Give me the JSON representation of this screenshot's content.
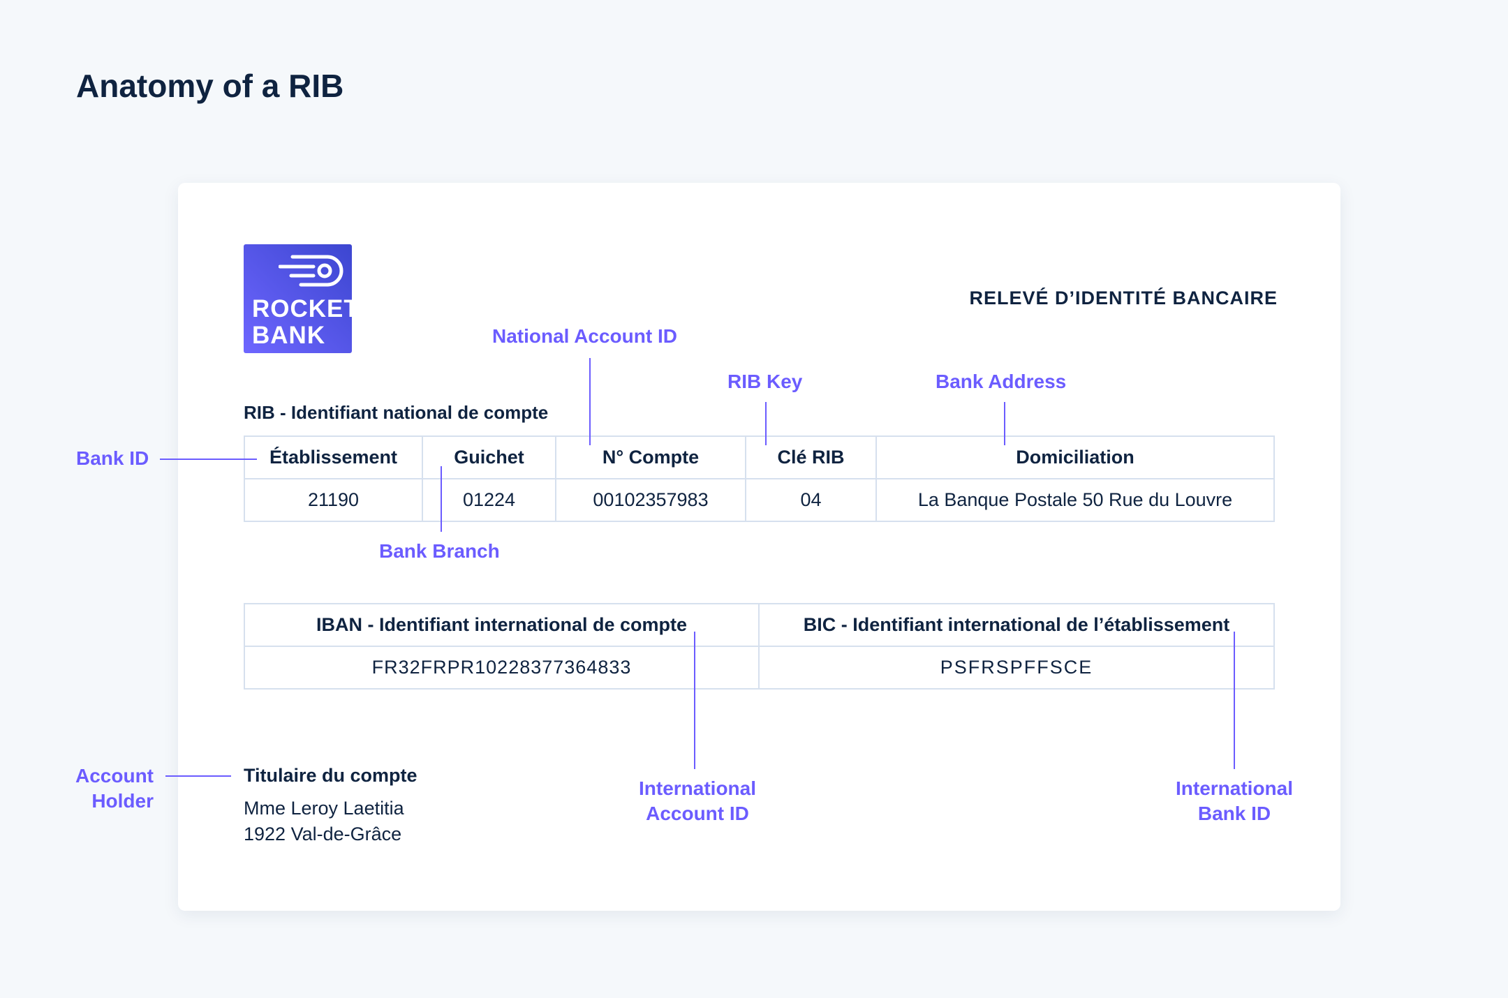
{
  "title": "Anatomy of a RIB",
  "logo": {
    "line1": "ROCKET",
    "line2": "BANK",
    "colors": [
      "#6e66ff",
      "#3c46d0"
    ]
  },
  "doc_title": "RELEVÉ D’IDENTITÉ BANCAIRE",
  "rib": {
    "label": "RIB - Identifiant national de compte",
    "headers": [
      "Établissement",
      "Guichet",
      "N° Compte",
      "Clé RIB",
      "Domiciliation"
    ],
    "values": [
      "21190",
      "01224",
      "00102357983",
      "04",
      "La Banque Postale 50 Rue du Louvre"
    ]
  },
  "intl": {
    "headers": [
      "IBAN - Identifiant international de compte",
      "BIC - Identifiant international de l’établissement"
    ],
    "values": [
      "FR32FRPR10228377364833",
      "PSFRSPFFSCE"
    ]
  },
  "holder": {
    "label": "Titulaire du compte",
    "name": "Mme Leroy Laetitia",
    "address": "1922 Val-de-Grâce"
  },
  "annotations": {
    "bank_id": "Bank ID",
    "national_account_id": "National Account ID",
    "rib_key": "RIB Key",
    "bank_address": "Bank Address",
    "bank_branch": "Bank Branch",
    "account_holder_1": "Account",
    "account_holder_2": "Holder",
    "intl_account_1": "International",
    "intl_account_2": "Account ID",
    "intl_bank_1": "International",
    "intl_bank_2": "Bank ID"
  },
  "accent": "#6b5cff"
}
